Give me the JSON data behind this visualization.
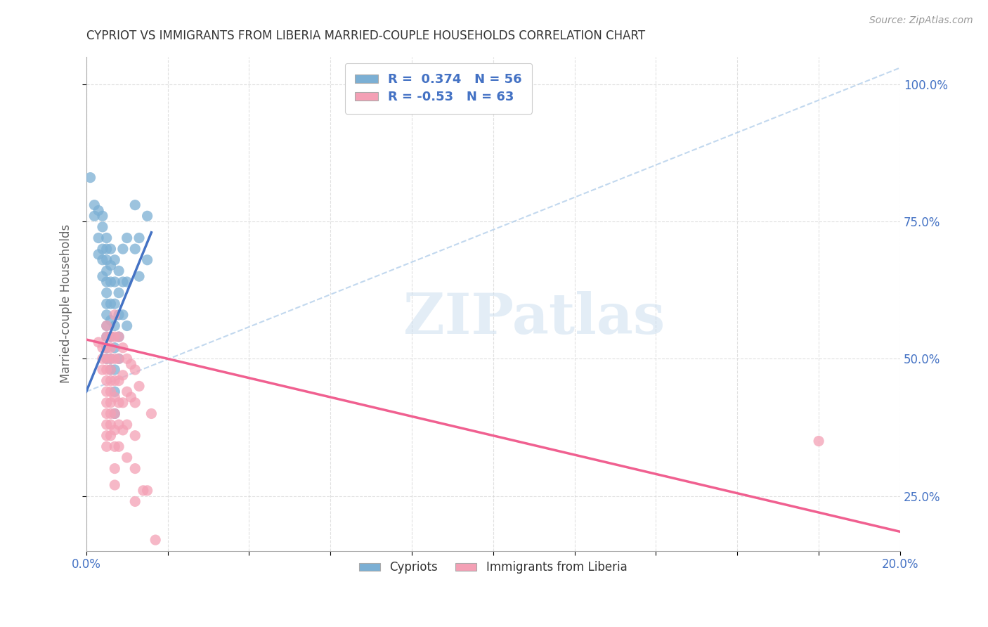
{
  "title": "CYPRIOT VS IMMIGRANTS FROM LIBERIA MARRIED-COUPLE HOUSEHOLDS CORRELATION CHART",
  "source": "Source: ZipAtlas.com",
  "ylabel": "Married-couple Households",
  "xlim": [
    0.0,
    0.2
  ],
  "ylim": [
    0.15,
    1.05
  ],
  "cypriot_color": "#7BAFD4",
  "liberia_color": "#F4A0B5",
  "cypriot_line_color": "#4472C4",
  "liberia_line_color": "#F06090",
  "dashed_line_color": "#A8C8E8",
  "R_cypriot": 0.374,
  "N_cypriot": 56,
  "R_liberia": -0.53,
  "N_liberia": 63,
  "background_color": "#FFFFFF",
  "grid_color": "#CCCCCC",
  "title_color": "#333333",
  "axis_label_color": "#666666",
  "right_axis_color": "#4472C4",
  "cypriot_scatter": [
    [
      0.001,
      0.83
    ],
    [
      0.002,
      0.78
    ],
    [
      0.002,
      0.76
    ],
    [
      0.003,
      0.77
    ],
    [
      0.003,
      0.72
    ],
    [
      0.003,
      0.69
    ],
    [
      0.004,
      0.76
    ],
    [
      0.004,
      0.74
    ],
    [
      0.004,
      0.7
    ],
    [
      0.004,
      0.68
    ],
    [
      0.004,
      0.65
    ],
    [
      0.005,
      0.72
    ],
    [
      0.005,
      0.7
    ],
    [
      0.005,
      0.68
    ],
    [
      0.005,
      0.66
    ],
    [
      0.005,
      0.64
    ],
    [
      0.005,
      0.62
    ],
    [
      0.005,
      0.6
    ],
    [
      0.005,
      0.58
    ],
    [
      0.005,
      0.56
    ],
    [
      0.005,
      0.54
    ],
    [
      0.005,
      0.52
    ],
    [
      0.005,
      0.5
    ],
    [
      0.006,
      0.7
    ],
    [
      0.006,
      0.67
    ],
    [
      0.006,
      0.64
    ],
    [
      0.006,
      0.6
    ],
    [
      0.006,
      0.57
    ],
    [
      0.006,
      0.54
    ],
    [
      0.006,
      0.5
    ],
    [
      0.006,
      0.48
    ],
    [
      0.007,
      0.68
    ],
    [
      0.007,
      0.64
    ],
    [
      0.007,
      0.6
    ],
    [
      0.007,
      0.56
    ],
    [
      0.007,
      0.52
    ],
    [
      0.007,
      0.48
    ],
    [
      0.007,
      0.44
    ],
    [
      0.007,
      0.4
    ],
    [
      0.008,
      0.66
    ],
    [
      0.008,
      0.62
    ],
    [
      0.008,
      0.58
    ],
    [
      0.008,
      0.54
    ],
    [
      0.008,
      0.5
    ],
    [
      0.009,
      0.7
    ],
    [
      0.009,
      0.64
    ],
    [
      0.009,
      0.58
    ],
    [
      0.01,
      0.72
    ],
    [
      0.01,
      0.64
    ],
    [
      0.01,
      0.56
    ],
    [
      0.012,
      0.78
    ],
    [
      0.012,
      0.7
    ],
    [
      0.013,
      0.72
    ],
    [
      0.013,
      0.65
    ],
    [
      0.015,
      0.76
    ],
    [
      0.015,
      0.68
    ]
  ],
  "liberia_scatter": [
    [
      0.003,
      0.53
    ],
    [
      0.004,
      0.52
    ],
    [
      0.004,
      0.5
    ],
    [
      0.004,
      0.48
    ],
    [
      0.005,
      0.56
    ],
    [
      0.005,
      0.54
    ],
    [
      0.005,
      0.52
    ],
    [
      0.005,
      0.5
    ],
    [
      0.005,
      0.48
    ],
    [
      0.005,
      0.46
    ],
    [
      0.005,
      0.44
    ],
    [
      0.005,
      0.42
    ],
    [
      0.005,
      0.4
    ],
    [
      0.005,
      0.38
    ],
    [
      0.005,
      0.36
    ],
    [
      0.005,
      0.34
    ],
    [
      0.006,
      0.54
    ],
    [
      0.006,
      0.52
    ],
    [
      0.006,
      0.5
    ],
    [
      0.006,
      0.48
    ],
    [
      0.006,
      0.46
    ],
    [
      0.006,
      0.44
    ],
    [
      0.006,
      0.42
    ],
    [
      0.006,
      0.4
    ],
    [
      0.006,
      0.38
    ],
    [
      0.006,
      0.36
    ],
    [
      0.007,
      0.58
    ],
    [
      0.007,
      0.54
    ],
    [
      0.007,
      0.5
    ],
    [
      0.007,
      0.46
    ],
    [
      0.007,
      0.43
    ],
    [
      0.007,
      0.4
    ],
    [
      0.007,
      0.37
    ],
    [
      0.007,
      0.34
    ],
    [
      0.007,
      0.3
    ],
    [
      0.007,
      0.27
    ],
    [
      0.008,
      0.54
    ],
    [
      0.008,
      0.5
    ],
    [
      0.008,
      0.46
    ],
    [
      0.008,
      0.42
    ],
    [
      0.008,
      0.38
    ],
    [
      0.008,
      0.34
    ],
    [
      0.009,
      0.52
    ],
    [
      0.009,
      0.47
    ],
    [
      0.009,
      0.42
    ],
    [
      0.009,
      0.37
    ],
    [
      0.01,
      0.5
    ],
    [
      0.01,
      0.44
    ],
    [
      0.01,
      0.38
    ],
    [
      0.01,
      0.32
    ],
    [
      0.011,
      0.49
    ],
    [
      0.011,
      0.43
    ],
    [
      0.012,
      0.48
    ],
    [
      0.012,
      0.42
    ],
    [
      0.012,
      0.36
    ],
    [
      0.012,
      0.3
    ],
    [
      0.012,
      0.24
    ],
    [
      0.013,
      0.45
    ],
    [
      0.014,
      0.26
    ],
    [
      0.015,
      0.26
    ],
    [
      0.016,
      0.4
    ],
    [
      0.017,
      0.17
    ],
    [
      0.18,
      0.35
    ]
  ],
  "cypriot_trendline_x": [
    0.0,
    0.016
  ],
  "cypriot_trendline_y": [
    0.44,
    0.73
  ],
  "liberia_trendline_x": [
    0.0,
    0.2
  ],
  "liberia_trendline_y": [
    0.535,
    0.185
  ],
  "dashed_trendline_x": [
    0.0,
    0.2
  ],
  "dashed_trendline_y": [
    0.44,
    1.03
  ]
}
